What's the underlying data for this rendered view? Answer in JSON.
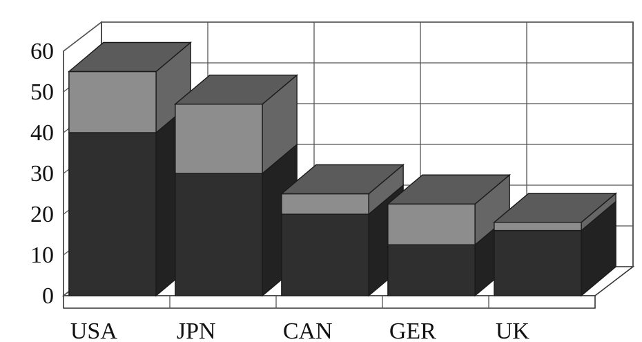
{
  "chart_data": {
    "type": "bar",
    "stacked": true,
    "three_d": true,
    "categories": [
      "USA",
      "JPN",
      "CAN",
      "GER",
      "UK"
    ],
    "series": [
      {
        "values": [
          40,
          30,
          20,
          12.5,
          16
        ],
        "color": "#2f2f2f"
      },
      {
        "values": [
          15,
          17,
          5,
          10,
          2
        ],
        "color": "#8d8d8d"
      }
    ],
    "yticks": [
      "0",
      "10",
      "20",
      "30",
      "40",
      "50",
      "60"
    ],
    "ylim": [
      0,
      60
    ],
    "grid": true,
    "title": "",
    "xlabel": "",
    "ylabel": ""
  }
}
